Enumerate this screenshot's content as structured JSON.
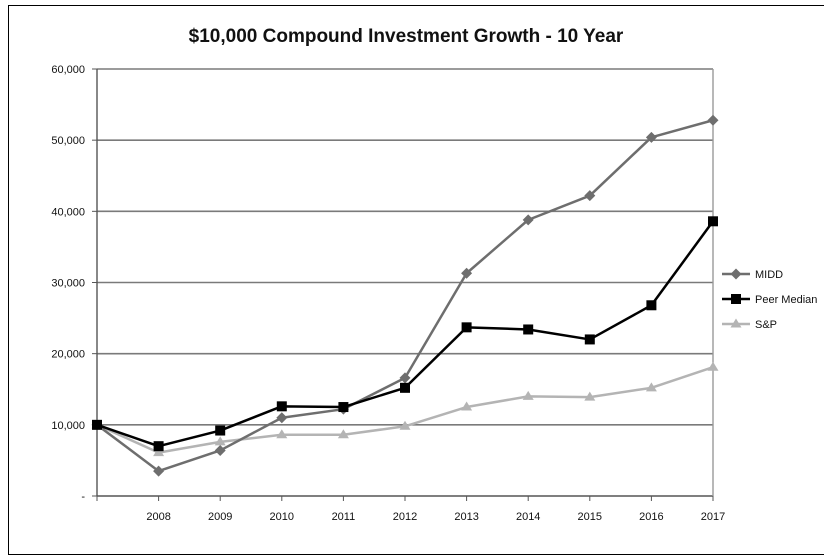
{
  "chart_data": {
    "type": "line",
    "title": "$10,000 Compound Investment Growth - 10 Year",
    "xlabel": "",
    "ylabel": "",
    "ylim": [
      0,
      60000
    ],
    "grid": true,
    "legend_position": "right",
    "x": [
      "",
      "2008",
      "2009",
      "2010",
      "2011",
      "2012",
      "2013",
      "2014",
      "2015",
      "2016",
      "2017"
    ],
    "y_ticks": [
      {
        "value": 0,
        "label": "-"
      },
      {
        "value": 10000,
        "label": "10,000"
      },
      {
        "value": 20000,
        "label": "20,000"
      },
      {
        "value": 30000,
        "label": "30,000"
      },
      {
        "value": 40000,
        "label": "40,000"
      },
      {
        "value": 50000,
        "label": "50,000"
      },
      {
        "value": 60000,
        "label": "60,000"
      }
    ],
    "series": [
      {
        "name": "MIDD",
        "color": "#6e6e6e",
        "marker": "diamond",
        "values": [
          10000,
          3500,
          6400,
          11000,
          12200,
          16600,
          31300,
          38800,
          42200,
          50400,
          52800
        ]
      },
      {
        "name": "Peer Median",
        "color": "#000000",
        "marker": "square",
        "values": [
          10000,
          7000,
          9200,
          12600,
          12500,
          15200,
          23700,
          23400,
          22000,
          26800,
          38600
        ]
      },
      {
        "name": "S&P",
        "color": "#b4b4b4",
        "marker": "triangle",
        "values": [
          10000,
          6100,
          7600,
          8600,
          8600,
          9800,
          12500,
          14000,
          13900,
          15200,
          18100
        ]
      }
    ]
  }
}
